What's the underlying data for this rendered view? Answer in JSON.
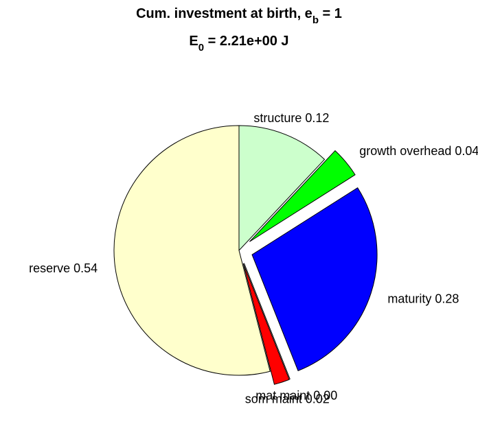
{
  "chart_data": {
    "type": "pie",
    "title": [
      "Cum. investment at birth, e",
      "b",
      " = 1"
    ],
    "subtitle": [
      "E",
      "0",
      " = 2.21e+00 J"
    ],
    "categories": [
      "structure 0.12",
      "growth overhead 0.04",
      "maturity 0.28",
      "mat maint 0.00",
      "som maint 0.02",
      "reserve 0.54"
    ],
    "values": [
      0.12,
      0.04,
      0.28,
      0,
      0.02,
      0.54
    ],
    "colors": [
      "#ccffcc",
      "#00ff00",
      "#0000ff",
      "#000000",
      "#ff0000",
      "#ffffcc"
    ],
    "explode": [
      false,
      true,
      true,
      true,
      true,
      false
    ]
  }
}
